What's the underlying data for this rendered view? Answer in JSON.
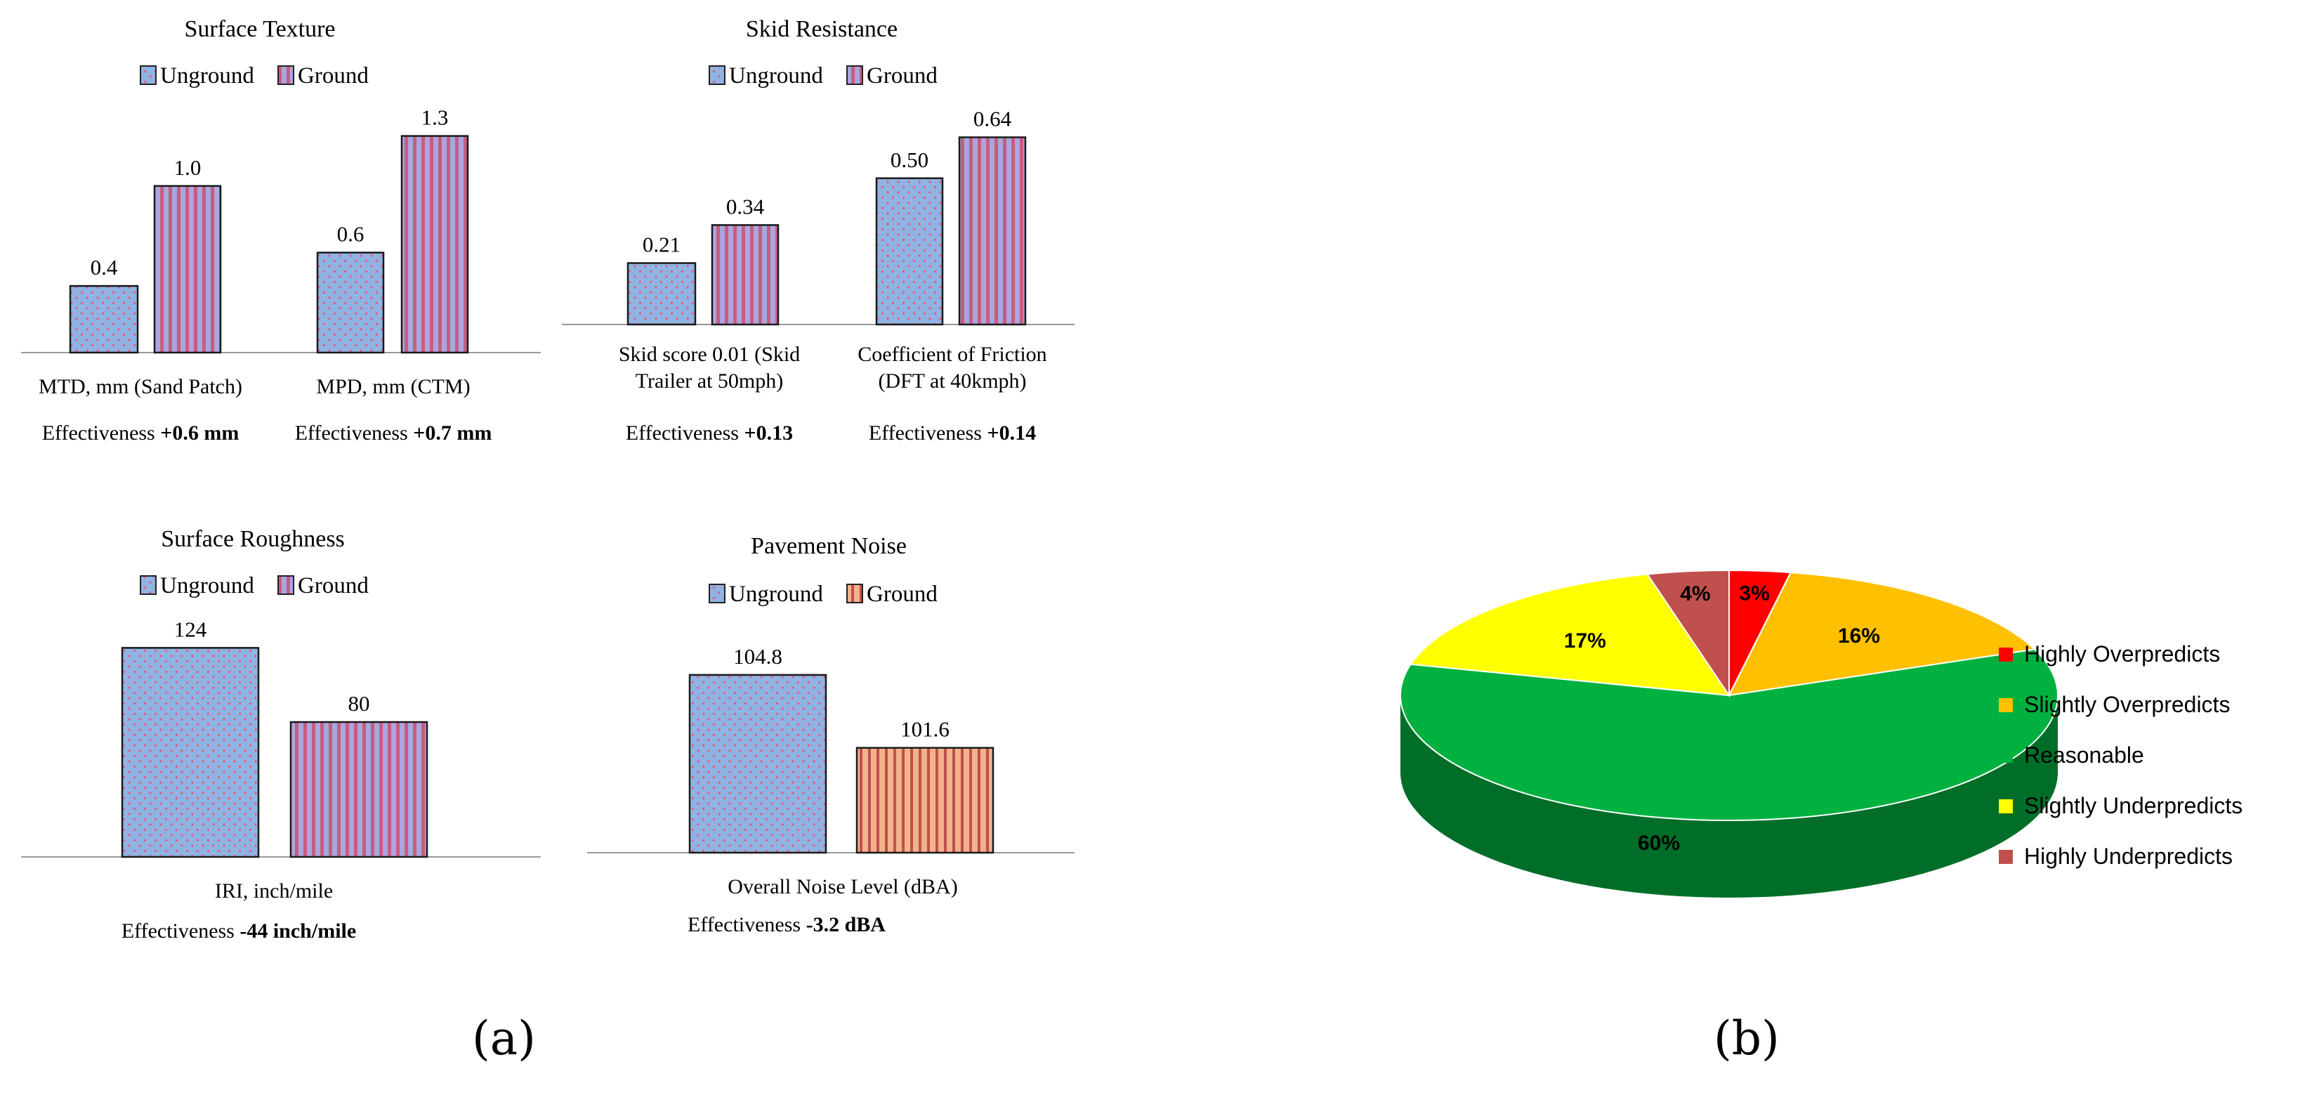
{
  "panel_a": {
    "caption": "(a)",
    "charts": [
      {
        "type": "bar",
        "title": "Surface Texture",
        "legend": [
          "Unground",
          "Ground"
        ],
        "ground_pattern": "vertical-stripes-pink",
        "categories": [
          "MTD, mm (Sand Patch)",
          "MPD, mm (CTM)"
        ],
        "series": [
          {
            "name": "Unground",
            "values": [
              0.4,
              0.6
            ],
            "labels": [
              "0.4",
              "0.6"
            ]
          },
          {
            "name": "Ground",
            "values": [
              1.0,
              1.3
            ],
            "labels": [
              "1.0",
              "1.3"
            ]
          }
        ],
        "ylim": [
          0,
          1.45
        ],
        "effectiveness": [
          {
            "prefix": "Effectiveness ",
            "value": "+0.6 mm"
          },
          {
            "prefix": "Effectiveness ",
            "value": "+0.7 mm"
          }
        ]
      },
      {
        "type": "bar",
        "title": "Skid Resistance",
        "legend": [
          "Unground",
          "Ground"
        ],
        "ground_pattern": "vertical-stripes-pink",
        "categories": [
          "Skid score  0.01 (Skid Trailer at 50mph)",
          "Coefficient of Friction (DFT at 40kmph)"
        ],
        "series": [
          {
            "name": "Unground",
            "values": [
              0.21,
              0.5
            ],
            "labels": [
              "0.21",
              "0.50"
            ]
          },
          {
            "name": "Ground",
            "values": [
              0.34,
              0.64
            ],
            "labels": [
              "0.34",
              "0.64"
            ]
          }
        ],
        "ylim": [
          0,
          0.73
        ],
        "effectiveness": [
          {
            "prefix": "Effectiveness ",
            "value": "+0.13"
          },
          {
            "prefix": "Effectiveness ",
            "value": "+0.14"
          }
        ]
      },
      {
        "type": "bar",
        "title": "Surface Roughness",
        "legend": [
          "Unground",
          "Ground"
        ],
        "ground_pattern": "vertical-stripes-pink",
        "categories": [
          "IRI, inch/mile"
        ],
        "series": [
          {
            "name": "Unground",
            "values": [
              124
            ],
            "labels": [
              "124"
            ]
          },
          {
            "name": "Ground",
            "values": [
              80
            ],
            "labels": [
              "80"
            ]
          }
        ],
        "ylim": [
          0,
          140
        ],
        "effectiveness": [
          {
            "prefix": "Effectiveness ",
            "value": "-44 inch/mile"
          }
        ]
      },
      {
        "type": "bar",
        "title": "Pavement Noise",
        "legend": [
          "Unground",
          "Ground"
        ],
        "ground_pattern": "vertical-stripes-orange",
        "categories": [
          "Overall Noise Level (dBA)"
        ],
        "series": [
          {
            "name": "Unground",
            "values": [
              104.8
            ],
            "labels": [
              "104.8"
            ]
          },
          {
            "name": "Ground",
            "values": [
              101.6
            ],
            "labels": [
              "101.6"
            ]
          }
        ],
        "ylim": [
          97,
          106.8
        ],
        "effectiveness": [
          {
            "prefix": "Effectiveness ",
            "value": "-3.2 dBA"
          }
        ]
      }
    ]
  },
  "panel_b": {
    "caption": "(b)",
    "chart": {
      "type": "pie",
      "style": "3d",
      "slices": [
        {
          "name": "Highly Overpredicts",
          "value": 3,
          "label": "3%",
          "color": "#ff0000"
        },
        {
          "name": "Slightly Overpredicts",
          "value": 16,
          "label": "16%",
          "color": "#ffc000"
        },
        {
          "name": "Reasonable",
          "value": 60,
          "label": "60%",
          "color": "#00b140"
        },
        {
          "name": "Slightly Underpredicts",
          "value": 17,
          "label": "17%",
          "color": "#ffff00"
        },
        {
          "name": "Highly Underpredicts",
          "value": 4,
          "label": "4%",
          "color": "#c0504d"
        }
      ],
      "legend_position": "right"
    }
  },
  "chart_data": [
    {
      "type": "bar",
      "title": "Surface Texture",
      "categories": [
        "MTD, mm (Sand Patch)",
        "MPD, mm (CTM)"
      ],
      "series": [
        {
          "name": "Unground",
          "values": [
            0.4,
            0.6
          ]
        },
        {
          "name": "Ground",
          "values": [
            1.0,
            1.3
          ]
        }
      ]
    },
    {
      "type": "bar",
      "title": "Skid Resistance",
      "categories": [
        "Skid score  0.01 (Skid Trailer at 50mph)",
        "Coefficient of Friction (DFT at 40kmph)"
      ],
      "series": [
        {
          "name": "Unground",
          "values": [
            0.21,
            0.5
          ]
        },
        {
          "name": "Ground",
          "values": [
            0.34,
            0.64
          ]
        }
      ]
    },
    {
      "type": "bar",
      "title": "Surface Roughness",
      "categories": [
        "IRI, inch/mile"
      ],
      "series": [
        {
          "name": "Unground",
          "values": [
            124
          ]
        },
        {
          "name": "Ground",
          "values": [
            80
          ]
        }
      ]
    },
    {
      "type": "bar",
      "title": "Pavement Noise",
      "categories": [
        "Overall Noise Level (dBA)"
      ],
      "series": [
        {
          "name": "Unground",
          "values": [
            104.8
          ]
        },
        {
          "name": "Ground",
          "values": [
            101.6
          ]
        }
      ]
    },
    {
      "type": "pie",
      "categories": [
        "Highly Overpredicts",
        "Slightly Overpredicts",
        "Reasonable",
        "Slightly Underpredicts",
        "Highly Underpredicts"
      ],
      "values": [
        3,
        16,
        60,
        17,
        4
      ],
      "legend": "right"
    }
  ]
}
